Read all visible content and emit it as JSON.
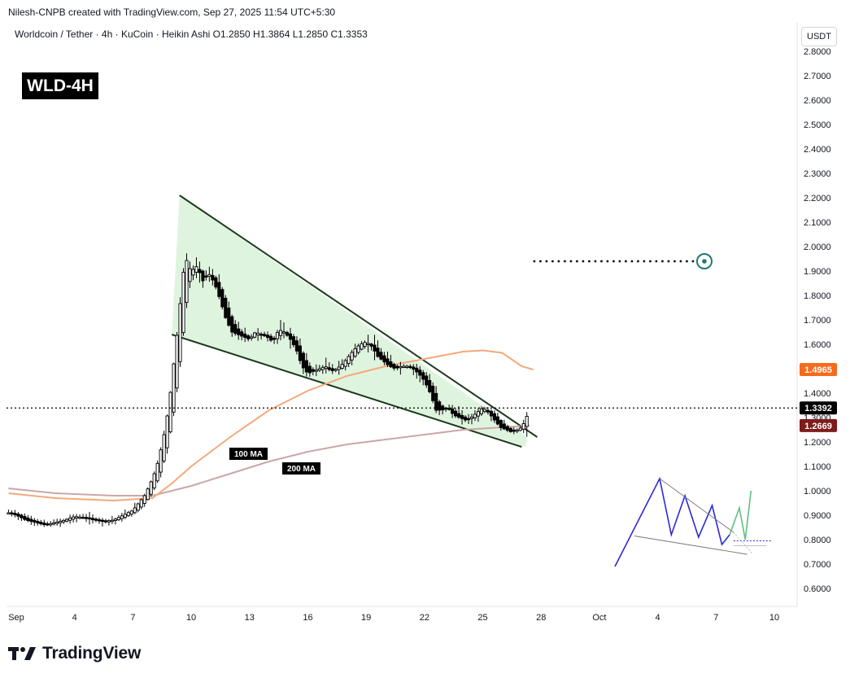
{
  "credit": "Nilesh-CNPB created with TradingView.com, Sep 27, 2025 11:54 UTC+5:30",
  "symbol_line": "Worldcoin / Tether · 4h · KuCoin · Heikin Ashi  O1.2850  H1.3864  L1.2850  C1.3353",
  "badge": "WLD-4H",
  "currency": "USDT",
  "brand": "TradingView",
  "colors": {
    "candle": "#000000",
    "wedge_fill": "#d9f2d9",
    "wedge_line": "#1b3a1b",
    "ma100": "#f4a97b",
    "ma200": "#c9a7a7",
    "target": "#1f7a6b",
    "price_tag": "#000000",
    "ma100_tag": "#f76a1c",
    "ma200_tag": "#7e1c1c",
    "schematic_blue": "#2a2ad6",
    "schematic_green": "#5fbf7f"
  },
  "chart_data": {
    "type": "candlestick",
    "title": "Worldcoin / Tether · 4h · KuCoin · Heikin Ashi",
    "ylim": [
      0.55,
      2.83
    ],
    "y_ticks": [
      "2.8000",
      "2.7000",
      "2.6000",
      "2.5000",
      "2.4000",
      "2.3000",
      "2.2000",
      "2.1000",
      "2.0000",
      "1.9000",
      "1.8000",
      "1.7000",
      "1.6000",
      "1.5000",
      "1.4000",
      "1.3000",
      "1.2000",
      "1.1000",
      "1.0000",
      "0.9000",
      "0.8000",
      "0.7000",
      "0.6000"
    ],
    "y_tick_values": [
      2.8,
      2.7,
      2.6,
      2.5,
      2.4,
      2.3,
      2.2,
      2.1,
      2.0,
      1.9,
      1.8,
      1.7,
      1.6,
      1.5,
      1.4,
      1.3,
      1.2,
      1.1,
      1.0,
      0.9,
      0.8,
      0.7,
      0.6
    ],
    "x_ticks": [
      {
        "label": "Sep",
        "day": 1
      },
      {
        "label": "4",
        "day": 4
      },
      {
        "label": "7",
        "day": 7
      },
      {
        "label": "10",
        "day": 10
      },
      {
        "label": "13",
        "day": 13
      },
      {
        "label": "16",
        "day": 16
      },
      {
        "label": "19",
        "day": 19
      },
      {
        "label": "22",
        "day": 22
      },
      {
        "label": "25",
        "day": 25
      },
      {
        "label": "28",
        "day": 28
      },
      {
        "label": "Oct",
        "day": 31
      },
      {
        "label": "4",
        "day": 34
      },
      {
        "label": "7",
        "day": 37
      },
      {
        "label": "10",
        "day": 40
      }
    ],
    "x_range_days": [
      0.6,
      41.8
    ],
    "close_path": [
      [
        0.6,
        0.91
      ],
      [
        1.0,
        0.9
      ],
      [
        1.5,
        0.88
      ],
      [
        2.0,
        0.87
      ],
      [
        2.5,
        0.86
      ],
      [
        3.0,
        0.87
      ],
      [
        3.5,
        0.88
      ],
      [
        4.0,
        0.895
      ],
      [
        4.5,
        0.89
      ],
      [
        5.0,
        0.88
      ],
      [
        5.5,
        0.875
      ],
      [
        6.0,
        0.88
      ],
      [
        6.5,
        0.9
      ],
      [
        7.0,
        0.92
      ],
      [
        7.3,
        0.95
      ],
      [
        7.6,
        0.98
      ],
      [
        7.9,
        1.03
      ],
      [
        8.2,
        1.09
      ],
      [
        8.5,
        1.19
      ],
      [
        8.7,
        1.27
      ],
      [
        8.9,
        1.38
      ],
      [
        9.1,
        1.52
      ],
      [
        9.3,
        1.66
      ],
      [
        9.5,
        1.82
      ],
      [
        9.7,
        1.97
      ],
      [
        9.8,
        1.93
      ],
      [
        10.0,
        1.9
      ],
      [
        10.3,
        1.92
      ],
      [
        10.6,
        1.86
      ],
      [
        10.9,
        1.89
      ],
      [
        11.2,
        1.85
      ],
      [
        11.5,
        1.78
      ],
      [
        11.8,
        1.7
      ],
      [
        12.1,
        1.65
      ],
      [
        12.4,
        1.64
      ],
      [
        12.7,
        1.63
      ],
      [
        13.0,
        1.62
      ],
      [
        13.3,
        1.65
      ],
      [
        13.6,
        1.64
      ],
      [
        13.9,
        1.63
      ],
      [
        14.2,
        1.61
      ],
      [
        14.5,
        1.66
      ],
      [
        14.8,
        1.65
      ],
      [
        15.1,
        1.62
      ],
      [
        15.4,
        1.58
      ],
      [
        15.7,
        1.51
      ],
      [
        16.0,
        1.48
      ],
      [
        16.3,
        1.49
      ],
      [
        16.6,
        1.5
      ],
      [
        16.9,
        1.51
      ],
      [
        17.2,
        1.49
      ],
      [
        17.5,
        1.5
      ],
      [
        17.8,
        1.52
      ],
      [
        18.1,
        1.55
      ],
      [
        18.4,
        1.58
      ],
      [
        18.7,
        1.6
      ],
      [
        19.0,
        1.61
      ],
      [
        19.3,
        1.59
      ],
      [
        19.6,
        1.55
      ],
      [
        19.9,
        1.53
      ],
      [
        20.2,
        1.51
      ],
      [
        20.5,
        1.5
      ],
      [
        20.8,
        1.51
      ],
      [
        21.1,
        1.51
      ],
      [
        21.4,
        1.5
      ],
      [
        21.7,
        1.48
      ],
      [
        22.0,
        1.45
      ],
      [
        22.3,
        1.4
      ],
      [
        22.6,
        1.33
      ],
      [
        22.9,
        1.33
      ],
      [
        23.2,
        1.34
      ],
      [
        23.5,
        1.31
      ],
      [
        23.8,
        1.3
      ],
      [
        24.1,
        1.29
      ],
      [
        24.4,
        1.3
      ],
      [
        24.7,
        1.32
      ],
      [
        25.0,
        1.34
      ],
      [
        25.3,
        1.32
      ],
      [
        25.6,
        1.29
      ],
      [
        25.9,
        1.26
      ],
      [
        26.2,
        1.25
      ],
      [
        26.5,
        1.24
      ],
      [
        26.8,
        1.25
      ],
      [
        27.0,
        1.26
      ],
      [
        27.2,
        1.29
      ],
      [
        27.4,
        1.3353
      ]
    ],
    "wedge": {
      "upper": [
        [
          9.4,
          2.21
        ],
        [
          27.8,
          1.22
        ]
      ],
      "lower": [
        [
          9.0,
          1.64
        ],
        [
          27.0,
          1.18
        ]
      ],
      "fill_points": [
        [
          9.4,
          2.21
        ],
        [
          27.3,
          1.22
        ],
        [
          27.2,
          1.18
        ],
        [
          9.0,
          1.64
        ]
      ]
    },
    "ma100": {
      "label": "100 MA",
      "points": [
        [
          0.6,
          0.99
        ],
        [
          3.0,
          0.97
        ],
        [
          6.0,
          0.96
        ],
        [
          8.0,
          0.97
        ],
        [
          9.0,
          1.03
        ],
        [
          10.0,
          1.1
        ],
        [
          12.0,
          1.22
        ],
        [
          14.0,
          1.33
        ],
        [
          16.0,
          1.41
        ],
        [
          18.0,
          1.47
        ],
        [
          20.0,
          1.51
        ],
        [
          22.0,
          1.54
        ],
        [
          24.0,
          1.57
        ],
        [
          25.0,
          1.575
        ],
        [
          26.0,
          1.565
        ],
        [
          27.0,
          1.51
        ],
        [
          27.6,
          1.4965
        ]
      ],
      "last_value": "1.4965"
    },
    "ma200": {
      "label": "200 MA",
      "points": [
        [
          0.6,
          1.01
        ],
        [
          3.0,
          0.99
        ],
        [
          6.0,
          0.98
        ],
        [
          8.0,
          0.98
        ],
        [
          10.0,
          1.02
        ],
        [
          12.0,
          1.07
        ],
        [
          14.0,
          1.12
        ],
        [
          16.0,
          1.16
        ],
        [
          18.0,
          1.19
        ],
        [
          20.0,
          1.21
        ],
        [
          22.0,
          1.23
        ],
        [
          24.0,
          1.25
        ],
        [
          26.0,
          1.26
        ],
        [
          27.4,
          1.2669
        ]
      ],
      "last_value": "1.2669"
    },
    "last_price": "1.3392",
    "last_price_value": 1.3392,
    "target": {
      "start_day": 27.6,
      "end_day": 36.4,
      "value": 1.94
    },
    "schematic": {
      "description_points": [
        [
          31.8,
          0.69
        ],
        [
          34.1,
          1.05
        ],
        [
          34.7,
          0.82
        ],
        [
          35.4,
          0.98
        ],
        [
          36.1,
          0.81
        ],
        [
          36.8,
          0.94
        ],
        [
          37.3,
          0.78
        ],
        [
          37.7,
          0.82
        ]
      ],
      "green_points": [
        [
          37.7,
          0.82
        ],
        [
          38.2,
          0.93
        ],
        [
          38.5,
          0.8
        ],
        [
          38.8,
          1.0
        ]
      ]
    },
    "ma100_tag": "1.4965",
    "ma200_tag": "1.2669"
  }
}
